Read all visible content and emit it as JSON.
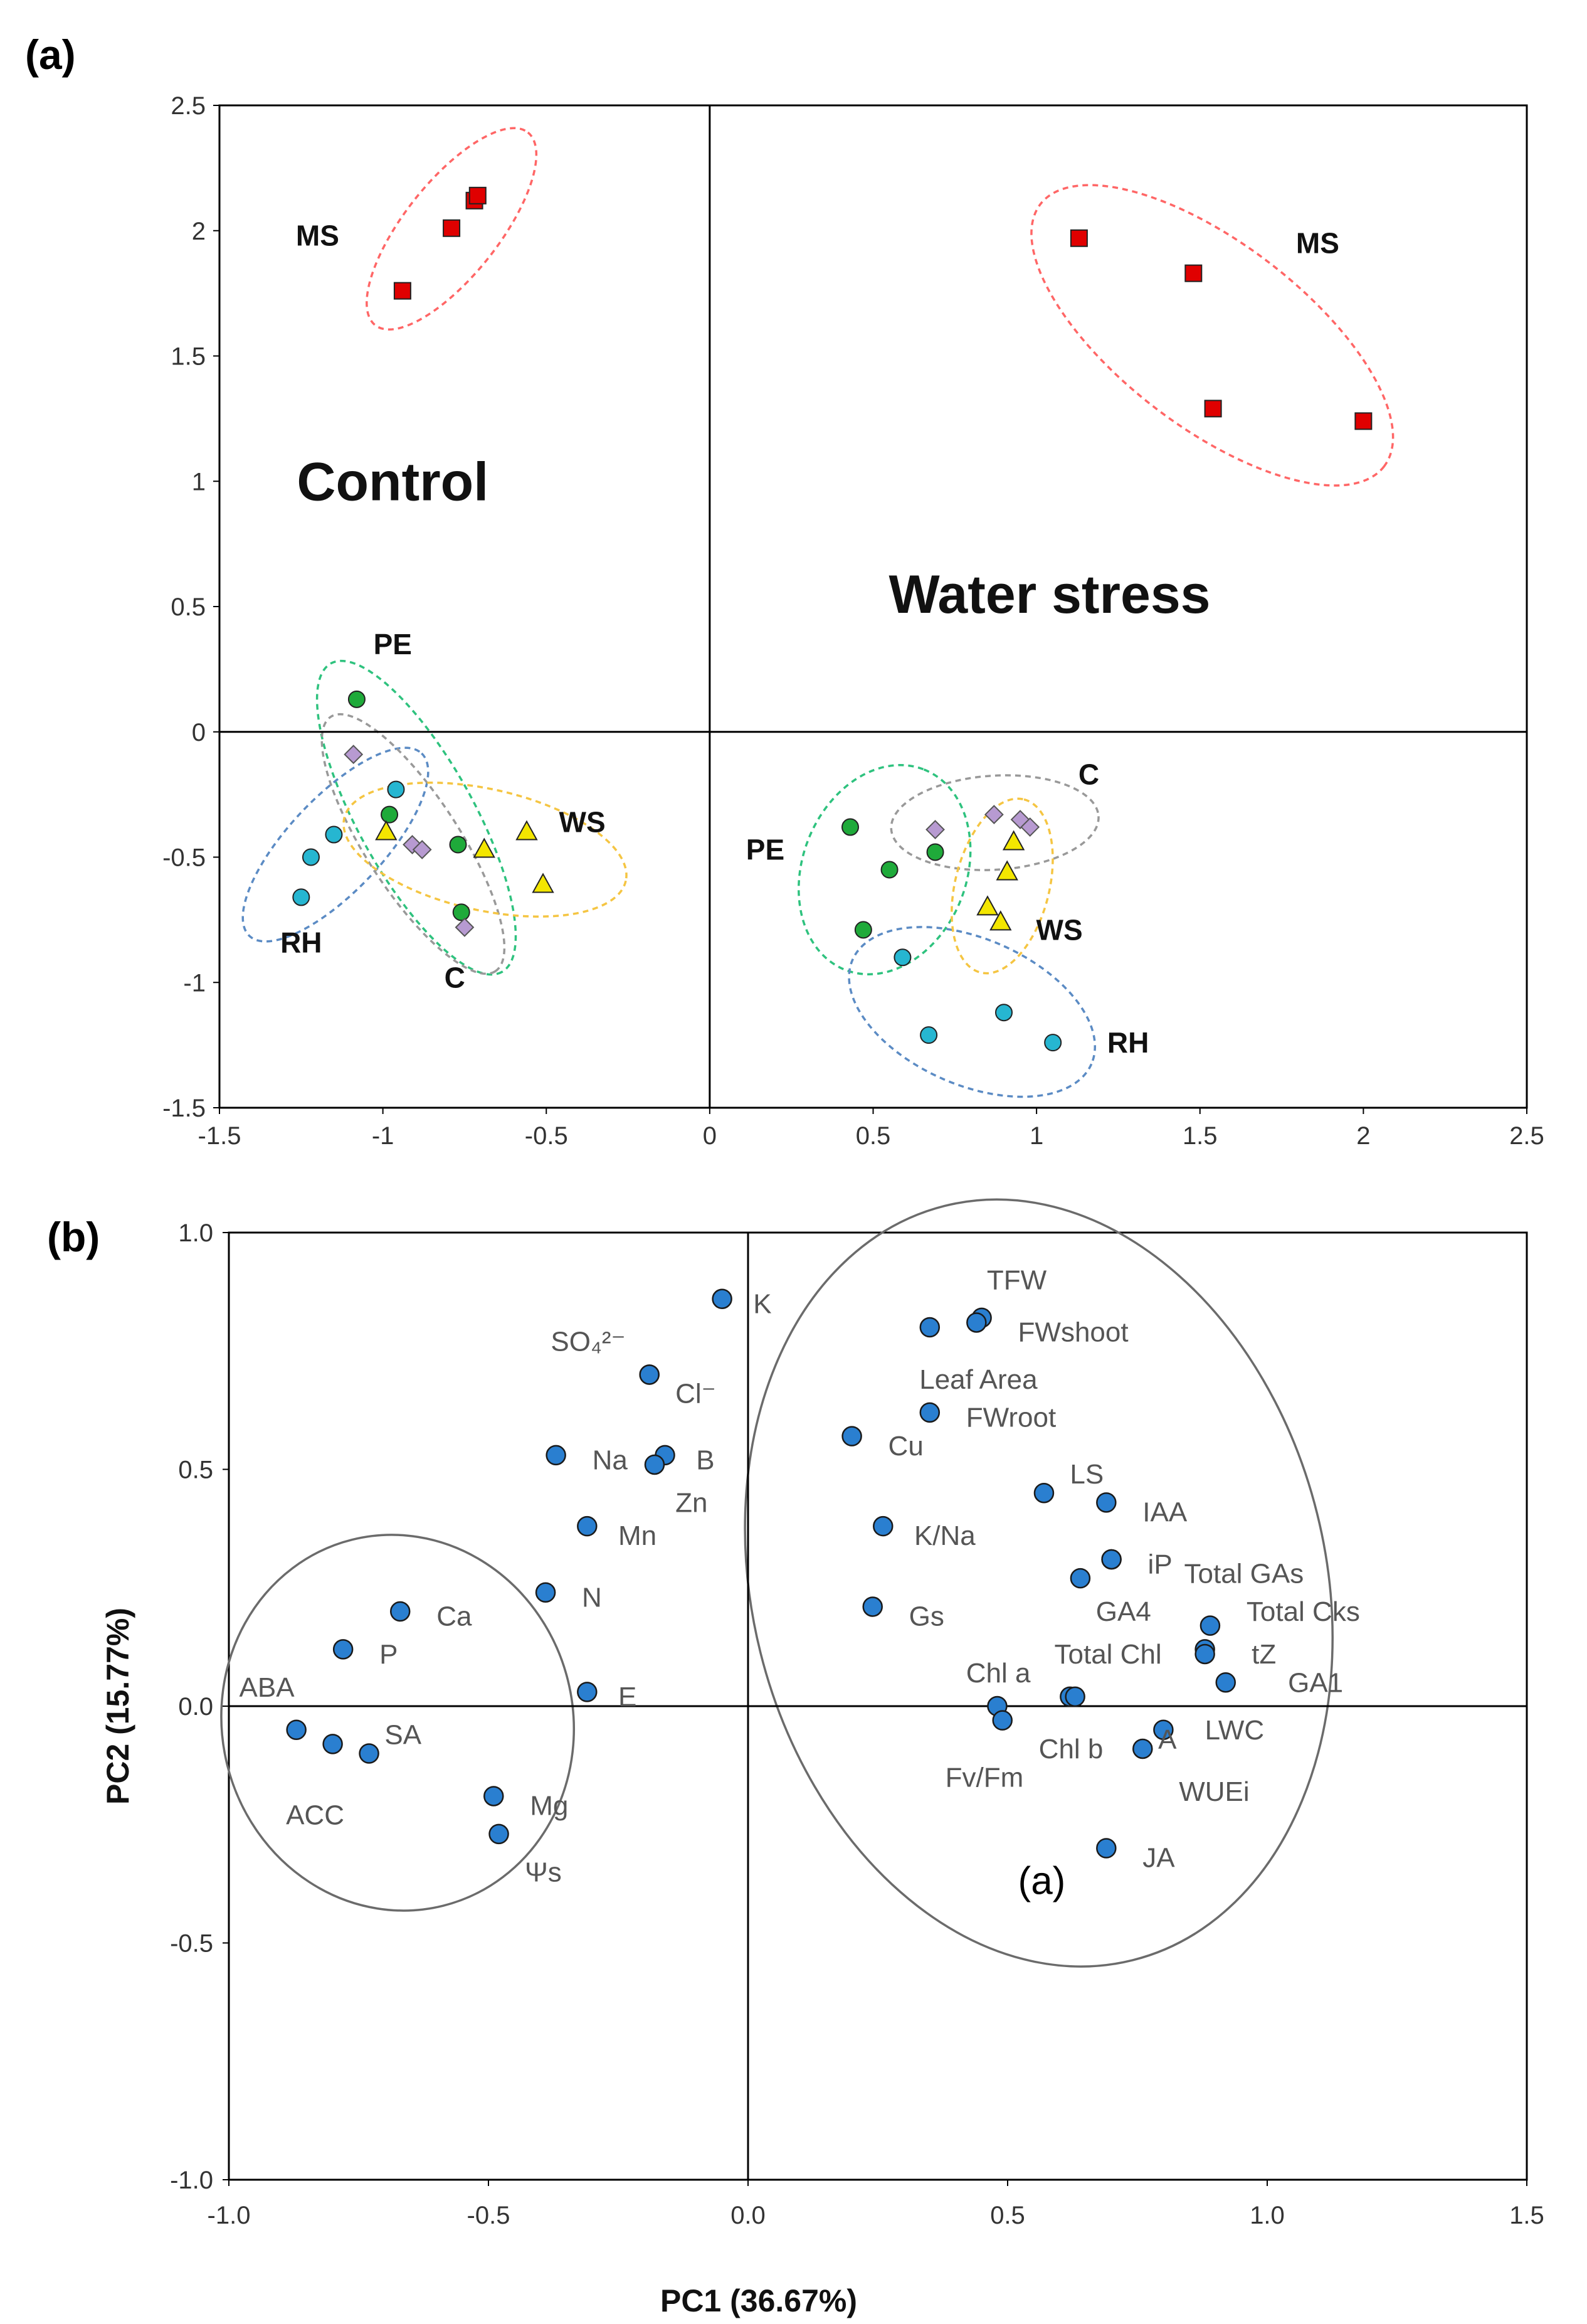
{
  "chart_data": [
    {
      "type": "scatter",
      "panel": "(a)",
      "title": "",
      "xlabel": "",
      "ylabel": "",
      "xlim": [
        -1.5,
        2.5
      ],
      "ylim": [
        -1.5,
        2.5
      ],
      "xticks": [
        -1.5,
        -1,
        -0.5,
        0,
        0.5,
        1,
        1.5,
        2,
        2.5
      ],
      "yticks": [
        -1.5,
        -1,
        -0.5,
        0,
        0.5,
        1,
        1.5,
        2,
        2.5
      ],
      "xtick_labels": [
        "-1.5",
        "-1",
        "-0.5",
        "0",
        "0.5",
        "1",
        "1.5",
        "2",
        "2.5"
      ],
      "ytick_labels": [
        "-1.5",
        "-1",
        "-0.5",
        "0",
        "0.5",
        "1",
        "1.5",
        "2",
        "2.5"
      ],
      "region_labels": [
        {
          "text": "Control",
          "x": -0.97,
          "y": 1.0
        },
        {
          "text": "Water stress",
          "x": 1.04,
          "y": 0.55
        }
      ],
      "series": [
        {
          "name": "MS",
          "marker": "square",
          "color": "#e00000",
          "ellipse_color": "#ff6666",
          "points": [
            [
              -0.94,
              1.76
            ],
            [
              -0.79,
              2.01
            ],
            [
              -0.72,
              2.12
            ],
            [
              -0.71,
              2.14
            ],
            [
              1.13,
              1.97
            ],
            [
              1.48,
              1.83
            ],
            [
              1.54,
              1.29
            ],
            [
              2.0,
              1.24
            ]
          ]
        },
        {
          "name": "PE",
          "marker": "circle",
          "color": "#1faa3a",
          "ellipse_color": "#2ec27e",
          "points": [
            [
              -1.08,
              0.13
            ],
            [
              -0.98,
              -0.33
            ],
            [
              -0.77,
              -0.45
            ],
            [
              -0.76,
              -0.72
            ],
            [
              0.43,
              -0.38
            ],
            [
              0.55,
              -0.55
            ],
            [
              0.47,
              -0.79
            ],
            [
              0.69,
              -0.48
            ]
          ]
        },
        {
          "name": "RH",
          "marker": "circle",
          "color": "#26b6d1",
          "ellipse_color": "#5b8bc4",
          "points": [
            [
              -1.25,
              -0.66
            ],
            [
              -1.22,
              -0.5
            ],
            [
              -1.15,
              -0.41
            ],
            [
              -0.96,
              -0.23
            ],
            [
              0.59,
              -0.9
            ],
            [
              0.67,
              -1.21
            ],
            [
              0.9,
              -1.12
            ],
            [
              1.05,
              -1.24
            ]
          ]
        },
        {
          "name": "C",
          "marker": "diamond",
          "color": "#b79ad1",
          "ellipse_color": "#999999",
          "points": [
            [
              -1.09,
              -0.09
            ],
            [
              -0.91,
              -0.45
            ],
            [
              -0.88,
              -0.47
            ],
            [
              -0.75,
              -0.78
            ],
            [
              0.69,
              -0.39
            ],
            [
              0.87,
              -0.33
            ],
            [
              0.95,
              -0.35
            ],
            [
              0.98,
              -0.38
            ]
          ]
        },
        {
          "name": "WS",
          "marker": "triangle",
          "color": "#f3e600",
          "ellipse_color": "#f5c542",
          "points": [
            [
              -0.99,
              -0.4
            ],
            [
              -0.69,
              -0.47
            ],
            [
              -0.56,
              -0.4
            ],
            [
              -0.51,
              -0.61
            ],
            [
              0.85,
              -0.7
            ],
            [
              0.89,
              -0.76
            ],
            [
              0.91,
              -0.56
            ],
            [
              0.93,
              -0.44
            ]
          ]
        }
      ],
      "group_label_positions": [
        {
          "text": "MS",
          "x": -1.2,
          "y": 1.98
        },
        {
          "text": "MS",
          "x": 1.86,
          "y": 1.95
        },
        {
          "text": "PE",
          "x": -0.97,
          "y": 0.35
        },
        {
          "text": "PE",
          "x": 0.17,
          "y": -0.47
        },
        {
          "text": "RH",
          "x": -1.25,
          "y": -0.84
        },
        {
          "text": "RH",
          "x": 1.28,
          "y": -1.24
        },
        {
          "text": "C",
          "x": -0.78,
          "y": -0.98
        },
        {
          "text": "C",
          "x": 1.16,
          "y": -0.17
        },
        {
          "text": "WS",
          "x": -0.39,
          "y": -0.36
        },
        {
          "text": "WS",
          "x": 1.07,
          "y": -0.79
        }
      ]
    },
    {
      "type": "scatter",
      "panel": "(b)",
      "title": "",
      "xlabel": "PC1 (36.67%)",
      "ylabel": "PC2 (15.77%)",
      "xlim": [
        -1.0,
        1.5
      ],
      "ylim": [
        -1.0,
        1.0
      ],
      "xticks": [
        -1.0,
        -0.5,
        0.0,
        0.5,
        1.0,
        1.5
      ],
      "yticks": [
        -1.0,
        -0.5,
        0.0,
        0.5,
        1.0
      ],
      "xtick_labels": [
        "-1.0",
        "-0.5",
        "0.0",
        "0.5",
        "1.0",
        "1.5"
      ],
      "ytick_labels": [
        "-1.0",
        "-0.5",
        "0.0",
        "0.5",
        "1.0"
      ],
      "annotation": {
        "text": "(a)",
        "x": 0.52,
        "y": -0.37
      },
      "point_color": "#2a7fd0",
      "points": [
        {
          "label": "K",
          "x": -0.05,
          "y": 0.86,
          "lx": 0.01,
          "ly": 0.85
        },
        {
          "label": "SO₄²⁻",
          "x": -0.19,
          "y": 0.7,
          "lx": -0.38,
          "ly": 0.77
        },
        {
          "label": "Cl⁻",
          "x": -0.19,
          "y": 0.7,
          "lx": -0.14,
          "ly": 0.66
        },
        {
          "label": "Na",
          "x": -0.37,
          "y": 0.53,
          "lx": -0.3,
          "ly": 0.52
        },
        {
          "label": "B",
          "x": -0.16,
          "y": 0.53,
          "lx": -0.1,
          "ly": 0.52
        },
        {
          "label": "Zn",
          "x": -0.18,
          "y": 0.51,
          "lx": -0.14,
          "ly": 0.43
        },
        {
          "label": "Mn",
          "x": -0.31,
          "y": 0.38,
          "lx": -0.25,
          "ly": 0.36
        },
        {
          "label": "N",
          "x": -0.39,
          "y": 0.24,
          "lx": -0.32,
          "ly": 0.23
        },
        {
          "label": "E",
          "x": -0.31,
          "y": 0.03,
          "lx": -0.25,
          "ly": 0.02
        },
        {
          "label": "Ca",
          "x": -0.67,
          "y": 0.2,
          "lx": -0.6,
          "ly": 0.19
        },
        {
          "label": "P",
          "x": -0.78,
          "y": 0.12,
          "lx": -0.71,
          "ly": 0.11
        },
        {
          "label": "ABA",
          "x": -0.87,
          "y": -0.05,
          "lx": -0.98,
          "ly": 0.04
        },
        {
          "label": "SA",
          "x": -0.73,
          "y": -0.1,
          "lx": -0.7,
          "ly": -0.06
        },
        {
          "label": "ACC",
          "x": -0.8,
          "y": -0.08,
          "lx": -0.89,
          "ly": -0.23
        },
        {
          "label": "Mg",
          "x": -0.49,
          "y": -0.19,
          "lx": -0.42,
          "ly": -0.21
        },
        {
          "label": "Ψs",
          "x": -0.48,
          "y": -0.27,
          "lx": -0.43,
          "ly": -0.35
        },
        {
          "label": "TFW",
          "x": 0.45,
          "y": 0.82,
          "lx": 0.46,
          "ly": 0.9
        },
        {
          "label": "FWshoot",
          "x": 0.44,
          "y": 0.81,
          "lx": 0.52,
          "ly": 0.79
        },
        {
          "label": "Leaf Area",
          "x": 0.35,
          "y": 0.8,
          "lx": 0.33,
          "ly": 0.69
        },
        {
          "label": "FWroot",
          "x": 0.35,
          "y": 0.62,
          "lx": 0.42,
          "ly": 0.61
        },
        {
          "label": "Cu",
          "x": 0.2,
          "y": 0.57,
          "lx": 0.27,
          "ly": 0.55
        },
        {
          "label": "LS",
          "x": 0.57,
          "y": 0.45,
          "lx": 0.62,
          "ly": 0.49
        },
        {
          "label": "IAA",
          "x": 0.69,
          "y": 0.43,
          "lx": 0.76,
          "ly": 0.41
        },
        {
          "label": "K/Na",
          "x": 0.26,
          "y": 0.38,
          "lx": 0.32,
          "ly": 0.36
        },
        {
          "label": "iP",
          "x": 0.7,
          "y": 0.31,
          "lx": 0.77,
          "ly": 0.3
        },
        {
          "label": "Total GAs",
          "x": 0.7,
          "y": 0.31,
          "lx": 0.84,
          "ly": 0.28
        },
        {
          "label": "GA4",
          "x": 0.64,
          "y": 0.27,
          "lx": 0.67,
          "ly": 0.2
        },
        {
          "label": "Gs",
          "x": 0.24,
          "y": 0.21,
          "lx": 0.31,
          "ly": 0.19
        },
        {
          "label": "Total Cks",
          "x": 0.89,
          "y": 0.17,
          "lx": 0.96,
          "ly": 0.2
        },
        {
          "label": "Total Chl",
          "x": 0.88,
          "y": 0.12,
          "lx": 0.59,
          "ly": 0.11
        },
        {
          "label": "tZ",
          "x": 0.88,
          "y": 0.11,
          "lx": 0.97,
          "ly": 0.11
        },
        {
          "label": "GA1",
          "x": 0.92,
          "y": 0.05,
          "lx": 1.04,
          "ly": 0.05
        },
        {
          "label": "Chl a",
          "x": 0.62,
          "y": 0.02,
          "lx": 0.42,
          "ly": 0.07
        },
        {
          "label": "Chl b",
          "x": 0.63,
          "y": 0.02,
          "lx": 0.56,
          "ly": -0.09
        },
        {
          "label": "LWC",
          "x": 0.8,
          "y": -0.05,
          "lx": 0.88,
          "ly": -0.05
        },
        {
          "label": "A",
          "x": 0.76,
          "y": -0.09,
          "lx": 0.79,
          "ly": -0.07
        },
        {
          "label": "Fv/Fm",
          "x": 0.48,
          "y": 0.0,
          "lx": 0.38,
          "ly": -0.15
        },
        {
          "label": "WUEi",
          "x": 0.49,
          "y": -0.03,
          "lx": 0.83,
          "ly": -0.18
        },
        {
          "label": "JA",
          "x": 0.69,
          "y": -0.3,
          "lx": 0.76,
          "ly": -0.32
        }
      ]
    }
  ]
}
